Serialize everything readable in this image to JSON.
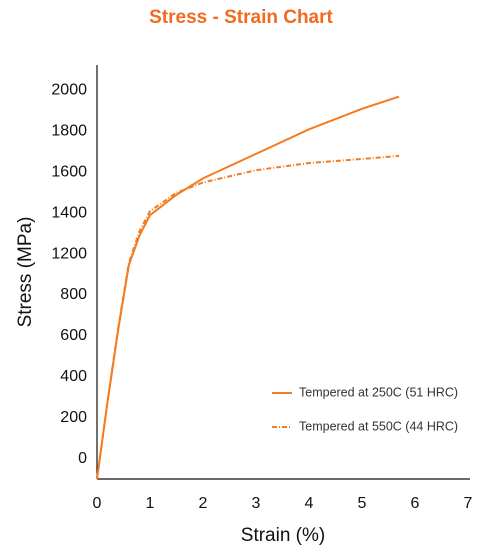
{
  "chart_data": {
    "type": "line",
    "title": "Stress - Strain Chart",
    "x_label": "Strain (%)",
    "y_label": "Stress (MPa)",
    "x": [
      0,
      0.2,
      0.4,
      0.6,
      0.8,
      1.0,
      1.5,
      2,
      3,
      4,
      5,
      5.7
    ],
    "series": [
      {
        "name": "Tempered at 250C (51 HRC)",
        "color": "#f47b20",
        "dash": "solid",
        "values": [
          -100,
          280,
          630,
          1090,
          1290,
          1390,
          1490,
          1570,
          1690,
          1810,
          1910,
          1970
        ]
      },
      {
        "name": "Tempered at 550C (44 HRC)",
        "color": "#f47b20",
        "dash": "dashdot",
        "values": [
          -100,
          280,
          640,
          1110,
          1310,
          1410,
          1500,
          1550,
          1610,
          1645,
          1665,
          1680
        ]
      }
    ],
    "xlim": [
      0,
      7
    ],
    "xticks": [
      0,
      1,
      2,
      3,
      4,
      5,
      6,
      7
    ],
    "ylim": [
      -100,
      2100
    ],
    "yticks": [
      0,
      200,
      400,
      600,
      800,
      1200,
      1400,
      1600,
      1800,
      2000
    ],
    "legend": "lower right",
    "grid": false
  }
}
